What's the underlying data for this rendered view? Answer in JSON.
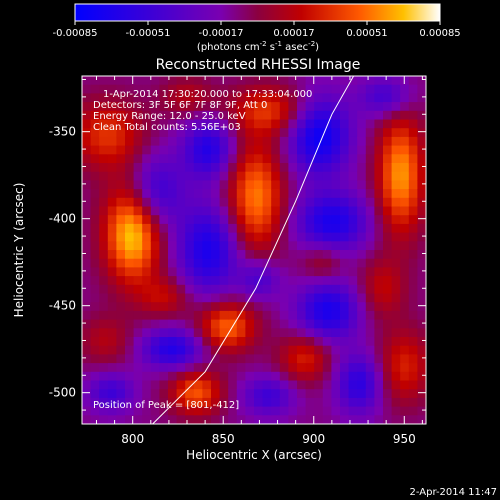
{
  "chart_data": {
    "type": "heatmap",
    "title": "Reconstructed RHESSI Image",
    "xlabel": "Heliocentric X (arcsec)",
    "ylabel": "Heliocentric Y (arcsec)",
    "xlim": [
      772,
      962
    ],
    "ylim": [
      -518,
      -318
    ],
    "x_ticks": [
      800,
      850,
      900,
      950
    ],
    "y_ticks": [
      -350,
      -400,
      -450,
      -500
    ],
    "colorbar": {
      "min": -0.00085,
      "max": 0.00085,
      "ticks": [
        "-0.00085",
        "-0.00051",
        "-0.00017",
        "0.00017",
        "0.00051",
        "0.00085"
      ],
      "label_main": "(photons cm",
      "label_exp1": "-2",
      "label_mid": " s",
      "label_exp2": "-1",
      "label_tail": " asec",
      "label_exp3": "-2",
      "label_close": ")"
    },
    "annotations": {
      "time_range": "1-Apr-2014 17:30:20.000 to 17:33:04.000",
      "detectors": "Detectors: 3F 5F 6F 7F 8F 9F, Att 0",
      "energy": "Energy Range: 12.0 - 25.0 keV",
      "clean": "Clean    Total counts: 5.56E+03",
      "peak": "Position of Peak = [801,-412]"
    },
    "limb": {
      "points": [
        [
          811,
          -518
        ],
        [
          840,
          -488
        ],
        [
          868,
          -440
        ],
        [
          890,
          -390
        ],
        [
          910,
          -340
        ],
        [
          922,
          -318
        ]
      ]
    },
    "sources": [
      {
        "x": 800,
        "y": -408,
        "value": 0.00085,
        "sx": 11,
        "sy": 20
      },
      {
        "x": 786,
        "y": -352,
        "value": 0.00045,
        "sx": 14,
        "sy": 14
      },
      {
        "x": 868,
        "y": -388,
        "value": 0.00065,
        "sx": 11,
        "sy": 22
      },
      {
        "x": 876,
        "y": -338,
        "value": 0.00045,
        "sx": 16,
        "sy": 10
      },
      {
        "x": 948,
        "y": -375,
        "value": 0.0007,
        "sx": 9,
        "sy": 24
      },
      {
        "x": 938,
        "y": -440,
        "value": 0.0003,
        "sx": 9,
        "sy": 12
      },
      {
        "x": 950,
        "y": -485,
        "value": 0.0004,
        "sx": 10,
        "sy": 15
      },
      {
        "x": 852,
        "y": -462,
        "value": 0.0006,
        "sx": 11,
        "sy": 10
      },
      {
        "x": 835,
        "y": -500,
        "value": 0.00055,
        "sx": 10,
        "sy": 9
      },
      {
        "x": 895,
        "y": -480,
        "value": 0.0004,
        "sx": 10,
        "sy": 10
      },
      {
        "x": 818,
        "y": -445,
        "value": 0.0003,
        "sx": 10,
        "sy": 8
      },
      {
        "x": 905,
        "y": -425,
        "value": 0.00025,
        "sx": 8,
        "sy": 8
      },
      {
        "x": 830,
        "y": -330,
        "value": 0.00025,
        "sx": 10,
        "sy": 8
      },
      {
        "x": 785,
        "y": -470,
        "value": 0.00025,
        "sx": 10,
        "sy": 10
      },
      {
        "x": 812,
        "y": -385,
        "value": -0.0005,
        "sx": 11,
        "sy": 15
      },
      {
        "x": 842,
        "y": -418,
        "value": -0.0006,
        "sx": 12,
        "sy": 18
      },
      {
        "x": 842,
        "y": -360,
        "value": -0.00055,
        "sx": 10,
        "sy": 12
      },
      {
        "x": 903,
        "y": -352,
        "value": -0.0007,
        "sx": 12,
        "sy": 16
      },
      {
        "x": 910,
        "y": -402,
        "value": -0.0006,
        "sx": 14,
        "sy": 12
      },
      {
        "x": 908,
        "y": -453,
        "value": -0.0006,
        "sx": 12,
        "sy": 12
      },
      {
        "x": 822,
        "y": -475,
        "value": -0.00055,
        "sx": 12,
        "sy": 8
      },
      {
        "x": 925,
        "y": -495,
        "value": -0.0005,
        "sx": 9,
        "sy": 12
      },
      {
        "x": 788,
        "y": -500,
        "value": -0.0004,
        "sx": 9,
        "sy": 8
      },
      {
        "x": 875,
        "y": -502,
        "value": -0.0004,
        "sx": 10,
        "sy": 8
      },
      {
        "x": 870,
        "y": -435,
        "value": -0.00035,
        "sx": 8,
        "sy": 8
      },
      {
        "x": 940,
        "y": -330,
        "value": -0.0004,
        "sx": 10,
        "sy": 8
      }
    ]
  },
  "footer": {
    "timestamp": "2-Apr-2014 11:47"
  }
}
